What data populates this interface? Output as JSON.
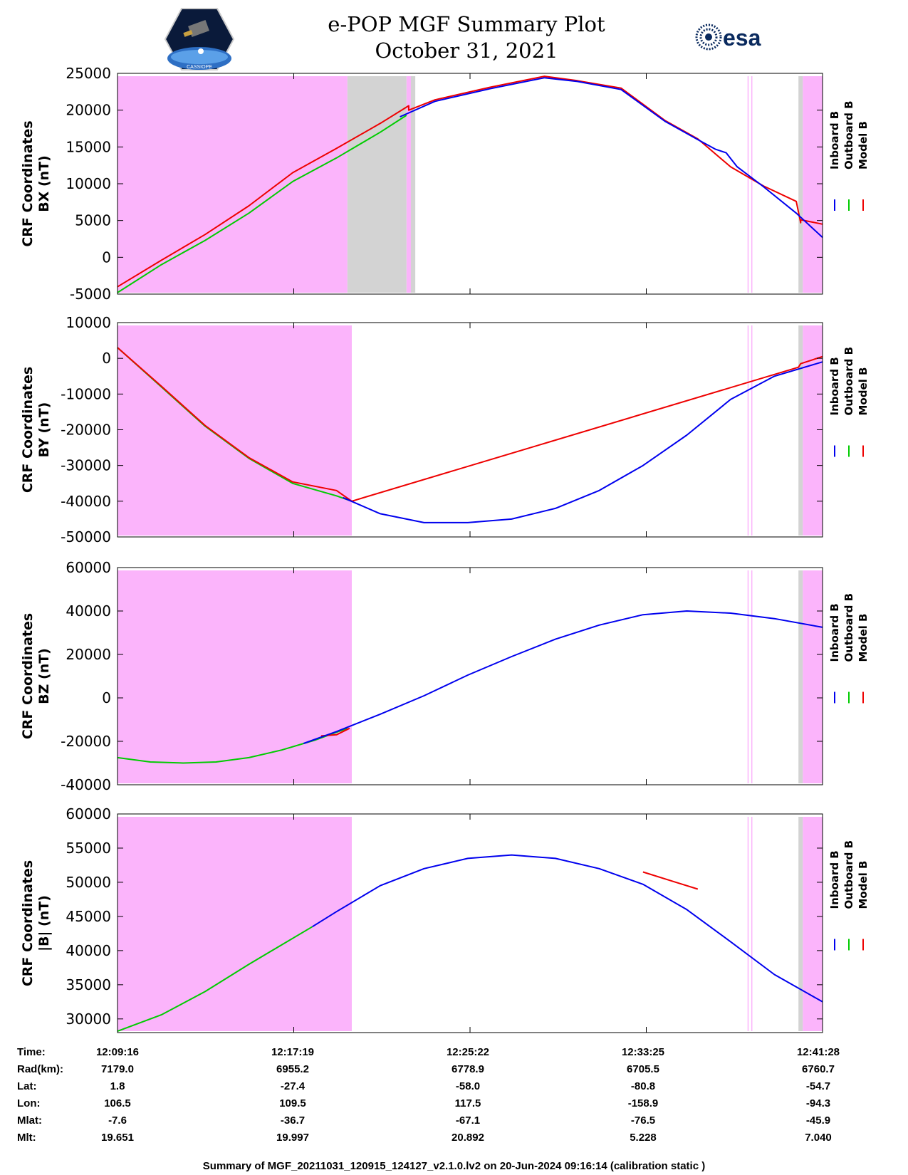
{
  "header": {
    "title_line1": "e-POP MGF Summary Plot",
    "title_line2": "October 31, 2021",
    "logo_left_text": "CASSIOPE",
    "logo_right_text": "esa"
  },
  "colors": {
    "inboard": "#0000ee",
    "outboard": "#00cc00",
    "model": "#ee0000",
    "shade_magenta": "#fbb4fb",
    "shade_gray": "#d3d3d3"
  },
  "legend": [
    {
      "name": "Inboard B",
      "color": "#0000ee"
    },
    {
      "name": "Outboard B",
      "color": "#00cc00"
    },
    {
      "name": "Model B",
      "color": "#ee0000"
    }
  ],
  "time_axis": {
    "label": "Time:",
    "ticks": [
      "12:09:16",
      "12:17:19",
      "12:25:22",
      "12:33:25",
      "12:41:28"
    ]
  },
  "ephemeris": [
    {
      "label": "Rad(km):",
      "values": [
        "7179.0",
        "6955.2",
        "6778.9",
        "6705.5",
        "6760.7"
      ]
    },
    {
      "label": "Lat:",
      "values": [
        "1.8",
        "-27.4",
        "-58.0",
        "-80.8",
        "-54.7"
      ]
    },
    {
      "label": "Lon:",
      "values": [
        "106.5",
        "109.5",
        "117.5",
        "-158.9",
        "-94.3"
      ]
    },
    {
      "label": "Mlat:",
      "values": [
        "-7.6",
        "-36.7",
        "-67.1",
        "-76.5",
        "-45.9"
      ]
    },
    {
      "label": "Mlt:",
      "values": [
        "19.651",
        "19.997",
        "20.892",
        "5.228",
        "7.040"
      ]
    }
  ],
  "footer": "Summary of MGF_20211031_120915_124127_v2.1.0.lv2 on 20-Jun-2024 09:16:14 (calibration static )",
  "chart_data": [
    {
      "type": "line",
      "title": "",
      "ylabel_line1": "CRF Coordinates",
      "ylabel_line2": "BX (nT)",
      "ylim": [
        -5000,
        25000
      ],
      "yticks": [
        -5000,
        0,
        5000,
        10000,
        15000,
        20000,
        25000
      ],
      "xlim_min": [
        0,
        32.2
      ],
      "shading": [
        {
          "color": "magenta",
          "from": 0,
          "to": 10.5
        },
        {
          "color": "gray",
          "from": 10.5,
          "to": 13.2
        },
        {
          "color": "magenta",
          "from": 13.2,
          "to": 13.4
        },
        {
          "color": "gray",
          "from": 13.4,
          "to": 13.6
        },
        {
          "color": "magenta_line",
          "from": 28.8,
          "to": 28.8
        },
        {
          "color": "magenta_line",
          "from": 28.97,
          "to": 28.97
        },
        {
          "color": "gray",
          "from": 31.1,
          "to": 31.3
        },
        {
          "color": "magenta",
          "from": 31.3,
          "to": 32.2
        }
      ],
      "series": [
        {
          "name": "Outboard B",
          "x": [
            0,
            2,
            4,
            6,
            8,
            10,
            12,
            13.2
          ],
          "values": [
            -4800,
            -1000,
            2300,
            6000,
            10300,
            13500,
            17000,
            19300
          ]
        },
        {
          "name": "Model B",
          "x": [
            0,
            2,
            4,
            6,
            8,
            10,
            12,
            13.3,
            13.3,
            14.5,
            17,
            19.5,
            21,
            23,
            25,
            26.5,
            28,
            29.5,
            31,
            31.2,
            31.2,
            32.2
          ],
          "values": [
            -4000,
            -400,
            3100,
            7000,
            11500,
            14800,
            18200,
            20600,
            20000,
            21400,
            23100,
            24600,
            24000,
            23000,
            18600,
            16100,
            12300,
            9700,
            7600,
            4700,
            5100,
            4500
          ]
        },
        {
          "name": "Inboard B",
          "x": [
            12.9,
            14.5,
            17,
            19.5,
            21,
            23,
            25,
            26.5,
            27.3,
            27.8,
            28.3,
            29.5,
            31,
            32.2
          ],
          "values": [
            19100,
            21200,
            22900,
            24400,
            23900,
            22800,
            18500,
            16000,
            14700,
            14200,
            12300,
            9600,
            6000,
            2700
          ]
        }
      ]
    },
    {
      "type": "line",
      "title": "",
      "ylabel_line1": "CRF Coordinates",
      "ylabel_line2": "BY (nT)",
      "ylim": [
        -50000,
        10000
      ],
      "yticks": [
        -50000,
        -40000,
        -30000,
        -20000,
        -10000,
        0,
        10000
      ],
      "xlim_min": [
        0,
        32.2
      ],
      "shading": [
        {
          "color": "magenta",
          "from": 0,
          "to": 10.7
        },
        {
          "color": "magenta_line",
          "from": 28.8,
          "to": 28.8
        },
        {
          "color": "magenta_line",
          "from": 28.97,
          "to": 28.97
        },
        {
          "color": "gray",
          "from": 31.1,
          "to": 31.3
        },
        {
          "color": "magenta",
          "from": 31.3,
          "to": 32.2
        }
      ],
      "series": [
        {
          "name": "Outboard B",
          "x": [
            0,
            2,
            4,
            6,
            8,
            10,
            10.7
          ],
          "values": [
            3000,
            -8000,
            -19000,
            -28000,
            -35000,
            -38500,
            -40000
          ]
        },
        {
          "name": "Model B",
          "x": [
            0,
            2,
            4,
            6,
            8,
            10,
            10.7,
            31.1,
            31.2,
            32.2
          ],
          "values": [
            3000,
            -7800,
            -18800,
            -27800,
            -34600,
            -37000,
            -40000,
            -2500,
            -1500,
            500
          ]
        },
        {
          "name": "Inboard B",
          "x": [
            10.3,
            12,
            14,
            16,
            18,
            20,
            22,
            24,
            26,
            28,
            30,
            32.2
          ],
          "values": [
            -39000,
            -43500,
            -46000,
            -46000,
            -45000,
            -42000,
            -37000,
            -30000,
            -21500,
            -11500,
            -5000,
            -1000
          ]
        }
      ]
    },
    {
      "type": "line",
      "title": "",
      "ylabel_line1": "CRF Coordinates",
      "ylabel_line2": "BZ (nT)",
      "ylim": [
        -40000,
        60000
      ],
      "yticks": [
        -40000,
        -20000,
        0,
        20000,
        40000,
        60000
      ],
      "xlim_min": [
        0,
        32.2
      ],
      "shading": [
        {
          "color": "magenta",
          "from": 0,
          "to": 10.7
        },
        {
          "color": "magenta_line",
          "from": 28.8,
          "to": 28.8
        },
        {
          "color": "magenta_line",
          "from": 28.97,
          "to": 28.97
        },
        {
          "color": "gray",
          "from": 31.1,
          "to": 31.3
        },
        {
          "color": "magenta",
          "from": 31.3,
          "to": 32.2
        }
      ],
      "series": [
        {
          "name": "Outboard B",
          "x": [
            0,
            1.5,
            3,
            4.5,
            6,
            7.5,
            9,
            10.5
          ],
          "values": [
            -27500,
            -29500,
            -30000,
            -29500,
            -27500,
            -24000,
            -19500,
            -14000
          ]
        },
        {
          "name": "Model B",
          "x": [
            9.3,
            10.0,
            10.6
          ],
          "values": [
            -17500,
            -17000,
            -14000
          ]
        },
        {
          "name": "Inboard B",
          "x": [
            8.5,
            10,
            12,
            14,
            16,
            18,
            20,
            22,
            24,
            26,
            28,
            30,
            32.2
          ],
          "values": [
            -21000,
            -15500,
            -7500,
            1000,
            10500,
            19000,
            27000,
            33500,
            38300,
            40000,
            39000,
            36500,
            32500
          ]
        }
      ]
    },
    {
      "type": "line",
      "title": "",
      "ylabel_line1": "CRF Coordinates",
      "ylabel_line2": "|B| (nT)",
      "ylim": [
        28000,
        60000
      ],
      "yticks": [
        30000,
        35000,
        40000,
        45000,
        50000,
        55000,
        60000
      ],
      "xlim_min": [
        0,
        32.2
      ],
      "shading": [
        {
          "color": "magenta",
          "from": 0,
          "to": 10.7
        },
        {
          "color": "magenta_line",
          "from": 28.8,
          "to": 28.8
        },
        {
          "color": "magenta_line",
          "from": 28.97,
          "to": 28.97
        },
        {
          "color": "gray",
          "from": 31.1,
          "to": 31.3
        },
        {
          "color": "magenta",
          "from": 31.3,
          "to": 32.2
        }
      ],
      "series": [
        {
          "name": "Outboard B",
          "x": [
            0,
            2,
            4,
            6,
            8.9
          ],
          "values": [
            28200,
            30600,
            34000,
            38000,
            43500
          ]
        },
        {
          "name": "Model B",
          "x": [
            24,
            25.5,
            26.5
          ],
          "values": [
            51500,
            50000,
            49000
          ]
        },
        {
          "name": "Inboard B",
          "x": [
            8.9,
            10,
            12,
            14,
            16,
            18,
            20,
            22,
            24,
            26,
            28,
            30,
            32.2
          ],
          "values": [
            43500,
            45700,
            49500,
            52000,
            53500,
            54000,
            53500,
            52000,
            49700,
            46000,
            41300,
            36500,
            32500
          ]
        }
      ]
    }
  ]
}
